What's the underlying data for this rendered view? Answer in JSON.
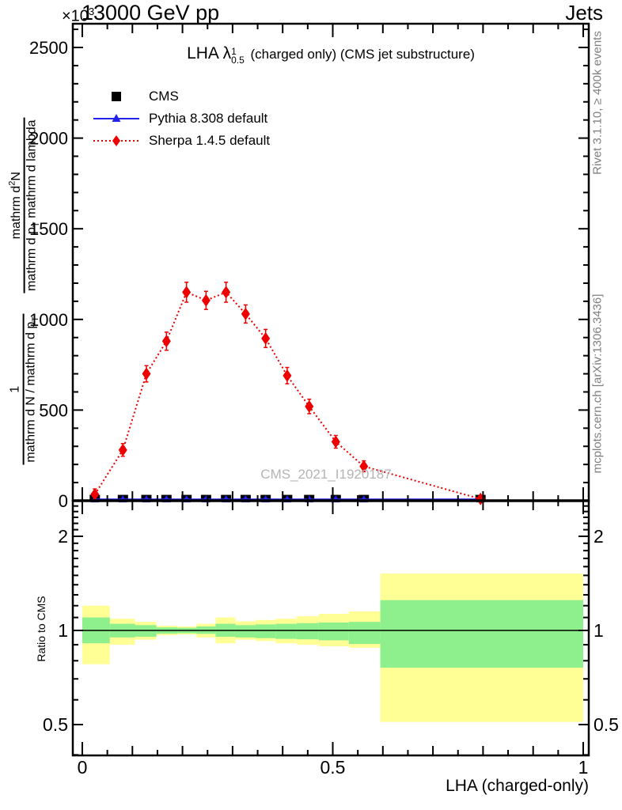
{
  "header": {
    "scale_label": "×10",
    "scale_exp": "3",
    "beam_title": "13000 GeV pp",
    "right_title": "Jets"
  },
  "title": {
    "prefix": "LHA ",
    "lambda": "λ",
    "sup": "1",
    "sub": "0.5",
    "suffix": " (charged only) (CMS jet substructure)"
  },
  "legend": {
    "items": [
      {
        "label": "CMS",
        "marker": "black-square",
        "color": "#000000"
      },
      {
        "label": "Pythia 8.308 default",
        "marker": "blue-line-triangle",
        "color": "#2222ee"
      },
      {
        "label": "Sherpa 1.4.5 default",
        "marker": "red-dotted-line-diamond",
        "color": "#ee0000"
      }
    ]
  },
  "watermark": "CMS_2021_I1920187",
  "credits": {
    "rivet": "Rivet 3.1.10, ≥ 400k events",
    "mcplots": "mcplots.cern.ch [arXiv:1306.3436]"
  },
  "ylabel": {
    "frac1_num": "1",
    "frac1_den_a": "mathrm d N / mathrm d p",
    "frac1_den_sub": "T",
    "frac2_num_a": "mathrm d",
    "frac2_num_sup": "2",
    "frac2_num_b": "N",
    "frac2_den_a": "mathrm d p",
    "frac2_den_sub": "T",
    "frac2_den_b": " mathrm d lambda"
  },
  "ratio_label": "Ratio to CMS",
  "xlabel": "LHA (charged-only)",
  "chart_data": {
    "type": "line",
    "title": "LHA lambda^1_0.5 (charged only) (CMS jet substructure)",
    "xlabel": "LHA (charged-only)",
    "ylabel": "1/(dN/dp_T) d^2N/(dp_T dlambda)",
    "y_scale": "×10³",
    "xlim": [
      -0.019,
      1.011
    ],
    "main_ylim": [
      -35,
      2630
    ],
    "ratio_ylim": [
      0.4,
      2.6
    ],
    "ratio_scale": "log2",
    "grid": false,
    "legend_position": "top-left",
    "x_ticks": {
      "values": [
        0,
        0.5,
        1
      ],
      "labels": [
        "0",
        "0.5",
        "1"
      ]
    },
    "x_minor_step": 0.05,
    "main_y_ticks": {
      "values": [
        0,
        500,
        1000,
        1500,
        2000,
        2500
      ],
      "labels": [
        "0",
        "500",
        "1000",
        "1500",
        "2000",
        "2500"
      ]
    },
    "main_y_minor_step": 100,
    "ratio_y_ticks": {
      "values": [
        0.5,
        1,
        2
      ],
      "labels": [
        "0.5",
        "1",
        "2"
      ]
    },
    "ratio_y_minor": [
      0.4,
      0.6,
      0.7,
      0.8,
      0.9,
      1.1,
      1.2,
      1.3,
      1.4,
      1.5,
      1.6,
      1.7,
      1.8,
      1.9,
      2.1,
      2.2,
      2.3,
      2.4,
      2.5
    ],
    "x": [
      0.025,
      0.081,
      0.128,
      0.168,
      0.208,
      0.247,
      0.287,
      0.326,
      0.366,
      0.409,
      0.453,
      0.506,
      0.562,
      0.795
    ],
    "series": [
      {
        "name": "CMS",
        "marker": "square",
        "color": "#000000",
        "line": "none",
        "values": [
          15,
          15,
          15,
          15,
          15,
          15,
          15,
          15,
          15,
          15,
          15,
          15,
          15,
          15
        ]
      },
      {
        "name": "Pythia 8.308 default",
        "marker": "triangle",
        "color": "#2222ee",
        "line": "solid",
        "values": [
          8,
          8,
          8,
          8,
          8,
          8,
          8,
          8,
          8,
          8,
          8,
          8,
          8,
          8
        ]
      },
      {
        "name": "Sherpa 1.4.5 default",
        "marker": "diamond",
        "color": "#ee0000",
        "line": "dotted",
        "values": [
          35,
          280,
          700,
          880,
          1150,
          1105,
          1150,
          1030,
          895,
          690,
          520,
          325,
          190,
          10
        ],
        "yerr": [
          30,
          35,
          45,
          50,
          55,
          50,
          55,
          50,
          50,
          45,
          40,
          35,
          30,
          15
        ]
      }
    ],
    "ratio": {
      "line_at": 1,
      "bin_edges": [
        0,
        0.055,
        0.105,
        0.148,
        0.19,
        0.228,
        0.266,
        0.306,
        0.346,
        0.386,
        0.428,
        0.472,
        0.532,
        0.595,
        1.0
      ],
      "yellow_band": [
        [
          0.78,
          1.2
        ],
        [
          0.9,
          1.09
        ],
        [
          0.935,
          1.065
        ],
        [
          0.965,
          1.035
        ],
        [
          0.97,
          1.03
        ],
        [
          0.95,
          1.05
        ],
        [
          0.91,
          1.1
        ],
        [
          0.935,
          1.07
        ],
        [
          0.925,
          1.08
        ],
        [
          0.91,
          1.09
        ],
        [
          0.9,
          1.11
        ],
        [
          0.89,
          1.13
        ],
        [
          0.88,
          1.15
        ],
        [
          0.51,
          1.52
        ]
      ],
      "green_band": [
        [
          0.91,
          1.1
        ],
        [
          0.95,
          1.05
        ],
        [
          0.955,
          1.04
        ],
        [
          0.977,
          1.023
        ],
        [
          0.98,
          1.02
        ],
        [
          0.975,
          1.03
        ],
        [
          0.955,
          1.05
        ],
        [
          0.95,
          1.04
        ],
        [
          0.945,
          1.045
        ],
        [
          0.94,
          1.05
        ],
        [
          0.937,
          1.055
        ],
        [
          0.93,
          1.06
        ],
        [
          0.905,
          1.065
        ],
        [
          0.76,
          1.25
        ]
      ],
      "colors": {
        "yellow": "#ffff96",
        "green": "#8df08d"
      }
    }
  }
}
